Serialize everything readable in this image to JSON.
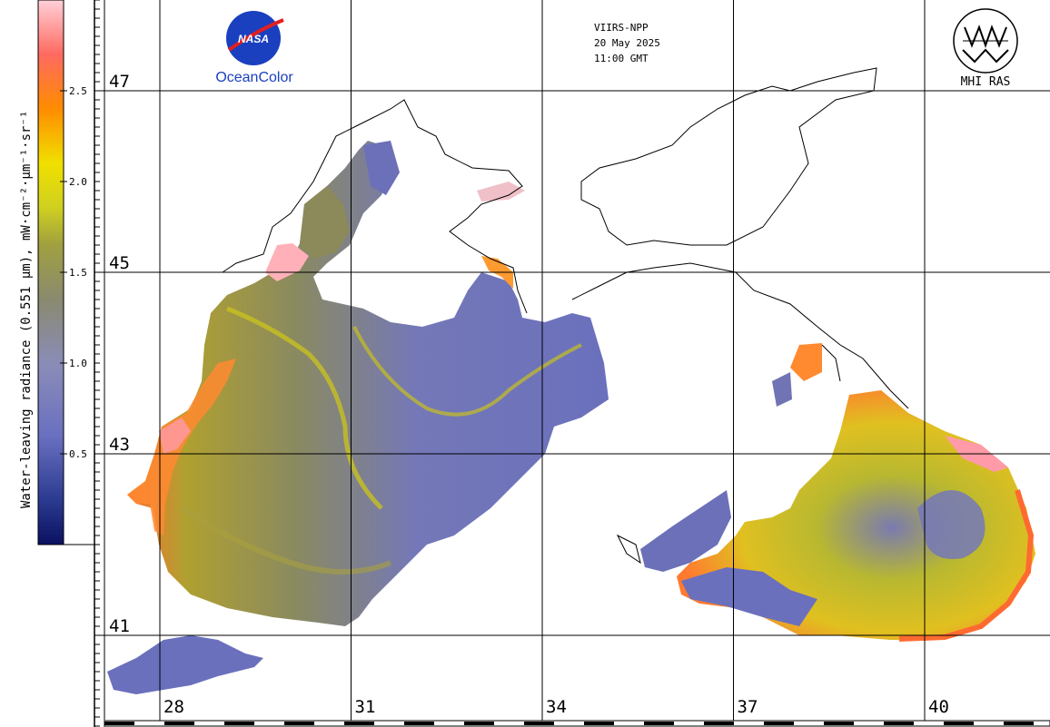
{
  "colorbar": {
    "title": "Water-leaving radiance (0.551 µm), mW·cm⁻²·µm⁻¹·sr⁻¹",
    "ticks": [
      {
        "value": 0.5,
        "label": "0.5"
      },
      {
        "value": 1.0,
        "label": "1.0"
      },
      {
        "value": 1.5,
        "label": "1.5"
      },
      {
        "value": 2.0,
        "label": "2.0"
      },
      {
        "value": 2.5,
        "label": "2.5"
      }
    ],
    "range": [
      0,
      3
    ],
    "colors": [
      "#0a1060",
      "#3a4aa0",
      "#7c80c8",
      "#8a8a7a",
      "#9a9a40",
      "#c8c820",
      "#f0e000",
      "#ff9a00",
      "#ff6020",
      "#ff8090",
      "#ffd0d8"
    ]
  },
  "info": {
    "sensor": "VIIRS-NPP",
    "date": "20 May 2025",
    "time": "11:00 GMT"
  },
  "logos": {
    "nasa": "NASA",
    "oceancolor": "OceanColor",
    "mhi": "MHI RAS"
  },
  "grid": {
    "latitudes": [
      {
        "value": 47,
        "label": "47"
      },
      {
        "value": 45,
        "label": "45"
      },
      {
        "value": 43,
        "label": "43"
      },
      {
        "value": 41,
        "label": "41"
      }
    ],
    "longitudes": [
      {
        "value": 28,
        "label": "28"
      },
      {
        "value": 31,
        "label": "31"
      },
      {
        "value": 34,
        "label": "34"
      },
      {
        "value": 37,
        "label": "37"
      },
      {
        "value": 40,
        "label": "40"
      }
    ]
  },
  "map_colors": {
    "low": "#6c70b8",
    "mid": "#8a8a58",
    "high_yellow": "#c8c820",
    "high_orange": "#ff8a20",
    "very_high": "#ff9aa8",
    "land": "#ffffff",
    "coast": "#000000"
  }
}
